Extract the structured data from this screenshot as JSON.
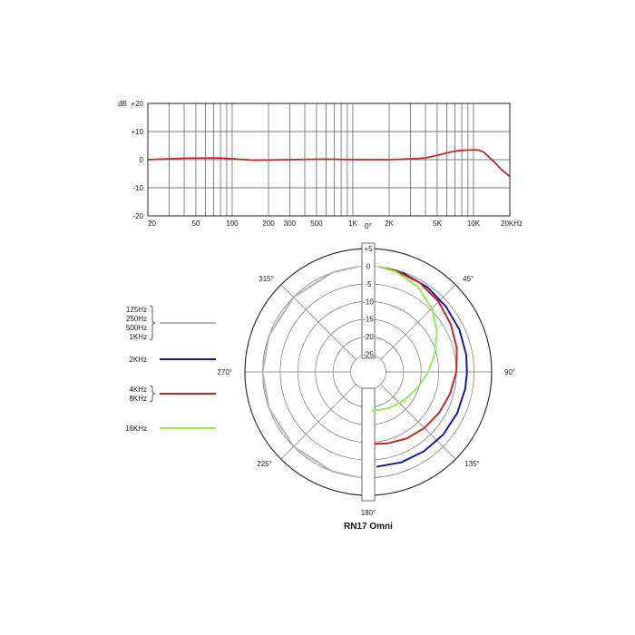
{
  "chart_data": [
    {
      "type": "line",
      "ylabel": "dB",
      "x_scale": "log",
      "xlim": [
        20,
        20000
      ],
      "ylim": [
        -20,
        20
      ],
      "grid": true,
      "x_tick_labels": [
        "20",
        "50",
        "100",
        "200",
        "300",
        "500",
        "1K",
        "2K",
        "5K",
        "10K",
        "20KHz"
      ],
      "x_ticks": [
        20,
        50,
        100,
        200,
        300,
        500,
        1000,
        2000,
        5000,
        10000,
        20000
      ],
      "y_tick_labels": [
        "+20",
        "+10",
        "0",
        "-10",
        "-20"
      ],
      "y_ticks": [
        20,
        10,
        0,
        -10,
        -20
      ],
      "color": "#c0282d",
      "series": [
        {
          "x": [
            20,
            40,
            80,
            150,
            300,
            600,
            1000,
            2000,
            3000,
            4000,
            5000,
            6000,
            7000,
            8000,
            9000,
            10000,
            11000,
            12000,
            13000,
            15000,
            17000,
            20000
          ],
          "y": [
            0,
            0.5,
            0.6,
            -0.2,
            0,
            0.2,
            0,
            0,
            0.3,
            0.6,
            1.5,
            2.4,
            3.0,
            3.3,
            3.4,
            3.5,
            3.4,
            2.8,
            1.5,
            -1,
            -3.5,
            -6
          ]
        }
      ]
    },
    {
      "type": "polar",
      "title": "RN17 Omni",
      "angle_labels": [
        "0°",
        "45°",
        "90°",
        "135°",
        "180°",
        "225°",
        "270°",
        "315°"
      ],
      "angles": [
        0,
        45,
        90,
        135,
        180,
        225,
        270,
        315
      ],
      "radial_tick_labels": [
        "+5",
        "0",
        "-5",
        "-10",
        "-15",
        "-20",
        "-25"
      ],
      "radial_ticks": [
        5,
        0,
        -5,
        -10,
        -15,
        -20,
        -25
      ],
      "rlim": [
        -30,
        5
      ],
      "legend_position": "left",
      "series": [
        {
          "name": [
            "125Hz",
            "250Hz",
            "500Hz",
            "1KHz"
          ],
          "color": "#b4b4b4",
          "theta": [
            186,
            200,
            225,
            250,
            270,
            290,
            315,
            340,
            354
          ],
          "r": [
            0,
            0,
            0,
            0,
            0,
            0,
            0,
            0,
            0
          ]
        },
        {
          "name": [
            "2KHz"
          ],
          "color": "#1a1aa6",
          "theta": [
            6,
            20,
            35,
            50,
            65,
            80,
            90,
            100,
            115,
            130,
            145,
            160,
            175
          ],
          "r": [
            0,
            -0.3,
            -0.7,
            -1.2,
            -1.5,
            -1.8,
            -2,
            -2.1,
            -2.2,
            -2.3,
            -2.5,
            -2.7,
            -3
          ]
        },
        {
          "name": [
            "4KHz",
            "8KHz"
          ],
          "color": "#c0282d",
          "theta": [
            6,
            15,
            30,
            45,
            60,
            75,
            90,
            105,
            120,
            135,
            150,
            165,
            175
          ],
          "r": [
            0,
            -0.2,
            -0.8,
            -1.8,
            -3,
            -4,
            -5,
            -6,
            -6.8,
            -7.5,
            -8.2,
            -9,
            -9.5
          ]
        },
        {
          "name": [
            "16KHz"
          ],
          "color": "#90ec5a",
          "theta": [
            6,
            15,
            30,
            45,
            60,
            75,
            90,
            105,
            120,
            135,
            150,
            165,
            175
          ],
          "r": [
            0,
            -0.5,
            -2,
            -4.5,
            -7.5,
            -10.5,
            -13,
            -15,
            -16.5,
            -17.5,
            -18.2,
            -18.8,
            -19
          ]
        }
      ]
    }
  ]
}
